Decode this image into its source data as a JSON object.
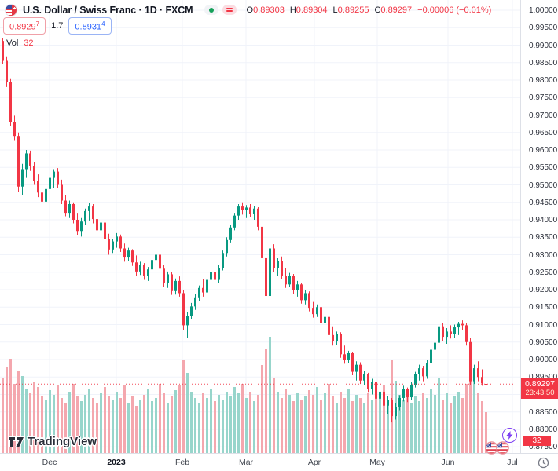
{
  "header": {
    "symbol_title": "U.S. Dollar / Swiss Franc · 1D · FXCM",
    "status_pills": {
      "market_dot": "market-open",
      "alert_glyph": "data-issue"
    },
    "legend": {
      "open": {
        "label": "O",
        "value": "0.89303"
      },
      "high": {
        "label": "H",
        "value": "0.89304"
      },
      "low": {
        "label": "L",
        "value": "0.89255"
      },
      "close": {
        "label": "C",
        "value": "0.89297"
      },
      "change": "−0.00006 (−0.01%)"
    },
    "sell_button": {
      "price_main": "0.8929",
      "price_sup": "7"
    },
    "spread": "1.7",
    "buy_button": {
      "price_main": "0.8931",
      "price_sup": "4"
    },
    "volume_indicator": {
      "label": "Vol",
      "value": "32"
    }
  },
  "watermark": {
    "brand": "TradingView"
  },
  "price_scale": {
    "current_price_label": "0.89297",
    "countdown": "23:43:50",
    "volume_axis_label": "32",
    "ticks": [
      "1.00000",
      "0.99500",
      "0.99000",
      "0.98500",
      "0.98000",
      "0.97500",
      "0.97000",
      "0.96500",
      "0.96000",
      "0.95500",
      "0.95000",
      "0.94500",
      "0.94000",
      "0.93500",
      "0.93000",
      "0.92500",
      "0.92000",
      "0.91500",
      "0.91000",
      "0.90500",
      "0.90000",
      "0.89500",
      "0.88500",
      "0.88000",
      "0.87500"
    ]
  },
  "time_scale": {
    "labels": [
      {
        "text": "Dec",
        "x": 63,
        "year": false
      },
      {
        "text": "2023",
        "x": 148,
        "year": true
      },
      {
        "text": "Feb",
        "x": 232,
        "year": false
      },
      {
        "text": "Mar",
        "x": 313,
        "year": false
      },
      {
        "text": "Apr",
        "x": 400,
        "year": false
      },
      {
        "text": "May",
        "x": 480,
        "year": false
      },
      {
        "text": "Jun",
        "x": 570,
        "year": false
      },
      {
        "text": "Jul",
        "x": 652,
        "year": false
      }
    ]
  },
  "chart_data": {
    "type": "candlestick",
    "title": "U.S. Dollar / Swiss Franc",
    "symbol": "USDCHF",
    "interval": "1D",
    "exchange": "FXCM",
    "current_price": 0.89297,
    "ylim": [
      0.8731,
      1.0003
    ],
    "visible_price_range": [
      "0.87500",
      "1.00000"
    ],
    "visible_time_range": [
      "Nov 2022",
      "Jul 2023"
    ],
    "grid": true,
    "legend_position": "top-left",
    "colors": {
      "up": "#089981",
      "down": "#f23645",
      "volume_up": "#97d5cb",
      "volume_down": "#f4a7ae",
      "grid": "#f0f3fa",
      "axis_border": "#dde0e7",
      "label_bg": "#f23645"
    },
    "candles_format": [
      "open",
      "high",
      "low",
      "close",
      "volume_px"
    ],
    "candles": [
      [
        0.9912,
        0.992,
        0.9845,
        0.9855,
        95
      ],
      [
        0.9855,
        0.9868,
        0.978,
        0.9795,
        110
      ],
      [
        0.9795,
        0.9805,
        0.9668,
        0.968,
        120
      ],
      [
        0.968,
        0.9698,
        0.9628,
        0.964,
        88
      ],
      [
        0.964,
        0.965,
        0.948,
        0.9495,
        105
      ],
      [
        0.9495,
        0.956,
        0.947,
        0.9545,
        98
      ],
      [
        0.9545,
        0.96,
        0.952,
        0.959,
        82
      ],
      [
        0.959,
        0.9598,
        0.954,
        0.9555,
        76
      ],
      [
        0.9555,
        0.9565,
        0.95,
        0.9512,
        90
      ],
      [
        0.9512,
        0.953,
        0.9465,
        0.9478,
        84
      ],
      [
        0.9478,
        0.9498,
        0.944,
        0.9452,
        72
      ],
      [
        0.9452,
        0.9495,
        0.9445,
        0.9488,
        68
      ],
      [
        0.9488,
        0.953,
        0.948,
        0.952,
        80
      ],
      [
        0.952,
        0.9545,
        0.9492,
        0.9538,
        74
      ],
      [
        0.9538,
        0.9548,
        0.949,
        0.95,
        86
      ],
      [
        0.95,
        0.9515,
        0.9445,
        0.9455,
        70
      ],
      [
        0.9455,
        0.947,
        0.941,
        0.942,
        64
      ],
      [
        0.942,
        0.9455,
        0.9405,
        0.9445,
        78
      ],
      [
        0.9445,
        0.945,
        0.939,
        0.94,
        88
      ],
      [
        0.94,
        0.942,
        0.9355,
        0.9368,
        72
      ],
      [
        0.9368,
        0.9405,
        0.9352,
        0.9395,
        66
      ],
      [
        0.9395,
        0.9432,
        0.9385,
        0.9425,
        74
      ],
      [
        0.9425,
        0.9448,
        0.9398,
        0.9438,
        82
      ],
      [
        0.9438,
        0.9445,
        0.939,
        0.9402,
        70
      ],
      [
        0.9402,
        0.9418,
        0.9358,
        0.937,
        64
      ],
      [
        0.937,
        0.94,
        0.9355,
        0.9392,
        76
      ],
      [
        0.9392,
        0.9396,
        0.9335,
        0.9345,
        84
      ],
      [
        0.9345,
        0.936,
        0.93,
        0.9315,
        72
      ],
      [
        0.9315,
        0.9345,
        0.9305,
        0.9338,
        68
      ],
      [
        0.9338,
        0.9362,
        0.932,
        0.9352,
        78
      ],
      [
        0.9352,
        0.9358,
        0.9308,
        0.9318,
        70
      ],
      [
        0.9318,
        0.9332,
        0.928,
        0.9292,
        86
      ],
      [
        0.9292,
        0.932,
        0.9282,
        0.9312,
        64
      ],
      [
        0.9312,
        0.9316,
        0.9268,
        0.9278,
        72
      ],
      [
        0.9278,
        0.9298,
        0.924,
        0.9252,
        60
      ],
      [
        0.9252,
        0.928,
        0.9242,
        0.9272,
        68
      ],
      [
        0.9272,
        0.9276,
        0.9228,
        0.924,
        74
      ],
      [
        0.924,
        0.9265,
        0.9225,
        0.9258,
        82
      ],
      [
        0.9258,
        0.9292,
        0.925,
        0.9285,
        66
      ],
      [
        0.9285,
        0.9308,
        0.9272,
        0.93,
        70
      ],
      [
        0.93,
        0.9305,
        0.9248,
        0.926,
        88
      ],
      [
        0.926,
        0.9272,
        0.9208,
        0.922,
        76
      ],
      [
        0.922,
        0.9252,
        0.9205,
        0.9244,
        64
      ],
      [
        0.9244,
        0.925,
        0.9185,
        0.9196,
        72
      ],
      [
        0.9196,
        0.9232,
        0.9186,
        0.9225,
        80
      ],
      [
        0.9225,
        0.9238,
        0.918,
        0.919,
        86
      ],
      [
        0.919,
        0.9198,
        0.9085,
        0.9098,
        118
      ],
      [
        0.9098,
        0.9135,
        0.9062,
        0.9125,
        102
      ],
      [
        0.9125,
        0.9162,
        0.9115,
        0.9152,
        78
      ],
      [
        0.9152,
        0.9188,
        0.9142,
        0.9178,
        70
      ],
      [
        0.9178,
        0.9212,
        0.9168,
        0.9205,
        64
      ],
      [
        0.9205,
        0.923,
        0.918,
        0.9192,
        76
      ],
      [
        0.9192,
        0.9235,
        0.9185,
        0.9228,
        70
      ],
      [
        0.9228,
        0.926,
        0.922,
        0.925,
        82
      ],
      [
        0.925,
        0.9258,
        0.9215,
        0.9228,
        66
      ],
      [
        0.9228,
        0.927,
        0.922,
        0.9262,
        74
      ],
      [
        0.9262,
        0.9312,
        0.9255,
        0.9305,
        68
      ],
      [
        0.9305,
        0.935,
        0.9295,
        0.9342,
        78
      ],
      [
        0.9342,
        0.9385,
        0.9335,
        0.9378,
        72
      ],
      [
        0.9378,
        0.942,
        0.937,
        0.9412,
        84
      ],
      [
        0.9412,
        0.9445,
        0.94,
        0.9438,
        76
      ],
      [
        0.9438,
        0.945,
        0.9415,
        0.9428,
        88
      ],
      [
        0.9428,
        0.9442,
        0.9405,
        0.9435,
        70
      ],
      [
        0.9435,
        0.9445,
        0.9408,
        0.9418,
        78
      ],
      [
        0.9418,
        0.944,
        0.94,
        0.9432,
        66
      ],
      [
        0.9432,
        0.9436,
        0.937,
        0.938,
        74
      ],
      [
        0.938,
        0.9388,
        0.928,
        0.929,
        112
      ],
      [
        0.929,
        0.93,
        0.917,
        0.9182,
        132
      ],
      [
        0.9182,
        0.933,
        0.917,
        0.9318,
        148
      ],
      [
        0.9318,
        0.933,
        0.925,
        0.9262,
        96
      ],
      [
        0.9262,
        0.929,
        0.924,
        0.9282,
        78
      ],
      [
        0.9282,
        0.9295,
        0.923,
        0.924,
        70
      ],
      [
        0.924,
        0.9262,
        0.9205,
        0.9215,
        82
      ],
      [
        0.9215,
        0.9248,
        0.9208,
        0.924,
        74
      ],
      [
        0.924,
        0.9245,
        0.9188,
        0.9198,
        66
      ],
      [
        0.9198,
        0.9225,
        0.918,
        0.9215,
        76
      ],
      [
        0.9215,
        0.922,
        0.916,
        0.917,
        68
      ],
      [
        0.917,
        0.92,
        0.9158,
        0.919,
        72
      ],
      [
        0.919,
        0.9195,
        0.9138,
        0.9148,
        80
      ],
      [
        0.9148,
        0.9165,
        0.912,
        0.913,
        74
      ],
      [
        0.913,
        0.9158,
        0.9122,
        0.915,
        84
      ],
      [
        0.915,
        0.9155,
        0.9095,
        0.9105,
        68
      ],
      [
        0.9105,
        0.913,
        0.908,
        0.9122,
        76
      ],
      [
        0.9122,
        0.9128,
        0.906,
        0.907,
        88
      ],
      [
        0.907,
        0.9095,
        0.904,
        0.9052,
        72
      ],
      [
        0.9052,
        0.908,
        0.9042,
        0.9072,
        64
      ],
      [
        0.9072,
        0.9078,
        0.9005,
        0.9015,
        78
      ],
      [
        0.9015,
        0.904,
        0.8988,
        0.8998,
        70
      ],
      [
        0.8998,
        0.9025,
        0.899,
        0.9018,
        82
      ],
      [
        0.9018,
        0.9022,
        0.8955,
        0.8965,
        66
      ],
      [
        0.8965,
        0.8995,
        0.894,
        0.8985,
        74
      ],
      [
        0.8985,
        0.8992,
        0.893,
        0.894,
        70
      ],
      [
        0.894,
        0.8968,
        0.8928,
        0.8958,
        64
      ],
      [
        0.8958,
        0.8962,
        0.8905,
        0.8915,
        76
      ],
      [
        0.8915,
        0.8945,
        0.89,
        0.8935,
        68
      ],
      [
        0.8935,
        0.894,
        0.8878,
        0.8888,
        80
      ],
      [
        0.8888,
        0.892,
        0.887,
        0.8908,
        72
      ],
      [
        0.8908,
        0.8912,
        0.8855,
        0.8868,
        86
      ],
      [
        0.8868,
        0.8895,
        0.8845,
        0.8885,
        66
      ],
      [
        0.8885,
        0.889,
        0.882,
        0.8838,
        118
      ],
      [
        0.8838,
        0.8875,
        0.8828,
        0.8865,
        92
      ],
      [
        0.8865,
        0.8898,
        0.8855,
        0.889,
        74
      ],
      [
        0.889,
        0.8925,
        0.888,
        0.8915,
        68
      ],
      [
        0.8915,
        0.892,
        0.8878,
        0.8892,
        78
      ],
      [
        0.8892,
        0.8935,
        0.8885,
        0.8928,
        64
      ],
      [
        0.8928,
        0.8965,
        0.892,
        0.8958,
        72
      ],
      [
        0.8958,
        0.8985,
        0.894,
        0.8975,
        66
      ],
      [
        0.8975,
        0.8982,
        0.8938,
        0.8952,
        76
      ],
      [
        0.8952,
        0.8998,
        0.8945,
        0.899,
        70
      ],
      [
        0.899,
        0.9035,
        0.8982,
        0.9028,
        82
      ],
      [
        0.9028,
        0.906,
        0.9015,
        0.9048,
        74
      ],
      [
        0.9048,
        0.915,
        0.904,
        0.9095,
        96
      ],
      [
        0.9095,
        0.9105,
        0.9052,
        0.9065,
        68
      ],
      [
        0.9065,
        0.909,
        0.9045,
        0.908,
        76
      ],
      [
        0.908,
        0.9098,
        0.906,
        0.9072,
        64
      ],
      [
        0.9072,
        0.91,
        0.9062,
        0.9092,
        72
      ],
      [
        0.9092,
        0.9108,
        0.907,
        0.9102,
        78
      ],
      [
        0.9102,
        0.9112,
        0.9085,
        0.9098,
        70
      ],
      [
        0.9098,
        0.9105,
        0.904,
        0.905,
        88
      ],
      [
        0.905,
        0.9062,
        0.8928,
        0.8938,
        136
      ],
      [
        0.8938,
        0.8985,
        0.893,
        0.8975,
        108
      ],
      [
        0.8975,
        0.8995,
        0.8938,
        0.895,
        76
      ],
      [
        0.895,
        0.8972,
        0.8925,
        0.8932,
        66
      ],
      [
        0.89303,
        0.89304,
        0.89255,
        0.89297,
        52
      ]
    ]
  }
}
